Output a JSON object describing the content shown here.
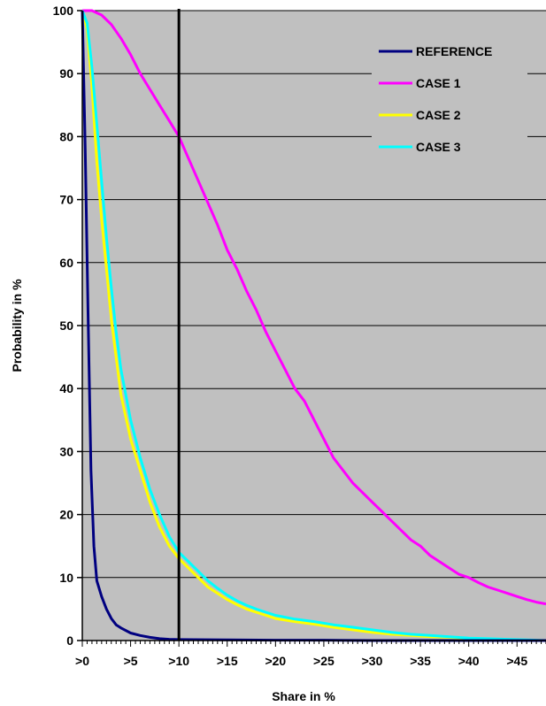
{
  "chart_data": {
    "type": "line",
    "title": "",
    "xlabel": "Share in %",
    "ylabel": "Probability in %",
    "xlim": [
      0,
      48
    ],
    "ylim": [
      0,
      100
    ],
    "x_tick_labels": [
      ">0",
      ">5",
      ">10",
      ">15",
      ">20",
      ">25",
      ">30",
      ">35",
      ">40",
      ">45"
    ],
    "x_tick_values": [
      0,
      5,
      10,
      15,
      20,
      25,
      30,
      35,
      40,
      45
    ],
    "y_ticks": [
      0,
      10,
      20,
      30,
      40,
      50,
      60,
      70,
      80,
      90,
      100
    ],
    "grid": "horizontal",
    "reference_line_x": 10,
    "legend_position": "top-right",
    "colors": {
      "plot_background": "#c0c0c0",
      "reference": "#000080",
      "case1": "#ff00ff",
      "case2": "#ffff00",
      "case3": "#00ffff",
      "vertical_line": "#000000"
    },
    "series": [
      {
        "name": "REFERENCE",
        "color": "#000080",
        "x": [
          0,
          0.3,
          0.6,
          0.9,
          1.2,
          1.5,
          2,
          2.5,
          3,
          3.5,
          4,
          5,
          6,
          7,
          8,
          9,
          10,
          15,
          20,
          25,
          30,
          35,
          40,
          45,
          48
        ],
        "y": [
          100,
          78,
          52,
          27,
          15,
          9.5,
          7,
          5,
          3.5,
          2.5,
          2,
          1.2,
          0.8,
          0.5,
          0.3,
          0.2,
          0.15,
          0.1,
          0.05,
          0.05,
          0,
          0,
          0,
          0,
          0
        ]
      },
      {
        "name": "CASE 1",
        "color": "#ff00ff",
        "x": [
          0,
          1,
          2,
          3,
          4,
          5,
          6,
          7,
          8,
          9,
          10,
          11,
          12,
          13,
          14,
          15,
          16,
          17,
          18,
          19,
          20,
          21,
          22,
          23,
          24,
          25,
          26,
          27,
          28,
          29,
          30,
          31,
          32,
          33,
          34,
          35,
          36,
          37,
          38,
          39,
          40,
          41,
          42,
          43,
          44,
          45,
          46,
          47,
          48
        ],
        "y": [
          100,
          100,
          99.3,
          97.8,
          95.6,
          93,
          90,
          87.5,
          85,
          82.5,
          80,
          76.5,
          73,
          69.5,
          66,
          62,
          59,
          55.5,
          52.5,
          49,
          46,
          43,
          40,
          38,
          35,
          32,
          29,
          27,
          25,
          23.5,
          22,
          20.5,
          19,
          17.5,
          16,
          15,
          13.5,
          12.5,
          11.5,
          10.5,
          10,
          9.2,
          8.5,
          8,
          7.5,
          7,
          6.5,
          6.1,
          5.8
        ]
      },
      {
        "name": "CASE 2",
        "color": "#ffff00",
        "x": [
          0,
          0.5,
          1,
          1.5,
          2,
          2.5,
          3,
          3.5,
          4,
          5,
          6,
          7,
          8,
          9,
          10,
          11,
          12,
          13,
          14,
          15,
          16,
          17,
          18,
          19,
          20,
          22,
          24,
          26,
          28,
          30,
          32,
          34,
          36,
          38,
          40,
          42,
          44,
          46,
          48
        ],
        "y": [
          100,
          97,
          88,
          76,
          67,
          59,
          51,
          45,
          39,
          32,
          27,
          22,
          18,
          15,
          13,
          11.5,
          10,
          8.5,
          7.5,
          6.5,
          5.7,
          5,
          4.5,
          4,
          3.5,
          3,
          2.6,
          2.1,
          1.7,
          1.3,
          1,
          0.8,
          0.6,
          0.5,
          0.3,
          0.2,
          0.1,
          0.05,
          0
        ]
      },
      {
        "name": "CASE 3",
        "color": "#00ffff",
        "x": [
          0,
          0.5,
          1,
          1.5,
          2,
          2.5,
          3,
          3.5,
          4,
          5,
          6,
          7,
          8,
          9,
          10,
          11,
          12,
          13,
          14,
          15,
          16,
          17,
          18,
          19,
          20,
          22,
          24,
          26,
          28,
          30,
          32,
          34,
          36,
          38,
          40,
          42,
          44,
          46,
          48
        ],
        "y": [
          100,
          98,
          91,
          82,
          73,
          64,
          56,
          49,
          43,
          35,
          29,
          24,
          20,
          16.5,
          14,
          12.5,
          11,
          9.5,
          8.3,
          7.2,
          6.3,
          5.6,
          5,
          4.5,
          4,
          3.4,
          3,
          2.5,
          2.1,
          1.7,
          1.3,
          1,
          0.8,
          0.6,
          0.4,
          0.3,
          0.2,
          0.1,
          0
        ]
      }
    ]
  }
}
